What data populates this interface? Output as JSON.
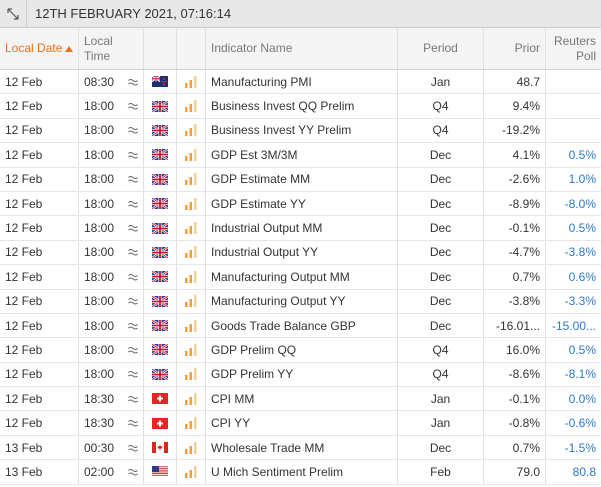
{
  "header": {
    "title": "12TH FEBRUARY 2021, 07:16:14"
  },
  "table": {
    "columns": [
      "Local Date",
      "Local Time",
      "Indicator Name",
      "Period",
      "Prior",
      "Reuters Poll"
    ],
    "rows": [
      {
        "date": "12 Feb",
        "time": "08:30",
        "indicator": "Manufacturing PMI",
        "period": "Jan",
        "prior": "48.7"
      },
      {
        "date": "12 Feb",
        "time": "18:00",
        "indicator": "Business Invest QQ Prelim",
        "period": "Q4",
        "prior": "9.4%"
      },
      {
        "date": "12 Feb",
        "time": "18:00",
        "indicator": "Business Invest YY Prelim",
        "period": "Q4",
        "prior": "-19.2%"
      },
      {
        "date": "12 Feb",
        "time": "18:00",
        "indicator": "GDP Est 3M/3M",
        "period": "Dec",
        "prior": "4.1%",
        "poll": "0.5%"
      },
      {
        "date": "12 Feb",
        "time": "18:00",
        "indicator": "GDP Estimate MM",
        "period": "Dec",
        "prior": "-2.6%",
        "poll": "1.0%"
      },
      {
        "date": "12 Feb",
        "time": "18:00",
        "indicator": "GDP Estimate YY",
        "period": "Dec",
        "prior": "-8.9%",
        "poll": "-8.0%"
      },
      {
        "date": "12 Feb",
        "time": "18:00",
        "indicator": "Industrial Output MM",
        "period": "Dec",
        "prior": "-0.1%",
        "poll": "0.5%"
      },
      {
        "date": "12 Feb",
        "time": "18:00",
        "indicator": "Industrial Output YY",
        "period": "Dec",
        "prior": "-4.7%",
        "poll": "-3.8%"
      },
      {
        "date": "12 Feb",
        "time": "18:00",
        "indicator": "Manufacturing Output MM",
        "period": "Dec",
        "prior": "0.7%",
        "poll": "0.6%"
      },
      {
        "date": "12 Feb",
        "time": "18:00",
        "indicator": "Manufacturing Output YY",
        "period": "Dec",
        "prior": "-3.8%",
        "poll": "-3.3%"
      },
      {
        "date": "12 Feb",
        "time": "18:00",
        "indicator": "Goods Trade Balance GBP",
        "period": "Dec",
        "prior": "-16.01...",
        "poll": "-15.00..."
      },
      {
        "date": "12 Feb",
        "time": "18:00",
        "indicator": "GDP Prelim QQ",
        "period": "Q4",
        "prior": "16.0%",
        "poll": "0.5%"
      },
      {
        "date": "12 Feb",
        "time": "18:00",
        "indicator": "GDP Prelim YY",
        "period": "Q4",
        "prior": "-8.6%",
        "poll": "-8.1%"
      },
      {
        "date": "12 Feb",
        "time": "18:30",
        "indicator": "CPI MM",
        "period": "Jan",
        "prior": "-0.1%",
        "poll": "0.0%"
      },
      {
        "date": "12 Feb",
        "time": "18:30",
        "indicator": "CPI YY",
        "period": "Jan",
        "prior": "-0.8%",
        "poll": "-0.6%"
      },
      {
        "date": "13 Feb",
        "time": "00:30",
        "indicator": "Wholesale Trade MM",
        "period": "Dec",
        "prior": "0.7%",
        "poll": "-1.5%"
      },
      {
        "date": "13 Feb",
        "time": "02:00",
        "indicator": "U Mich Sentiment Prelim",
        "period": "Feb",
        "prior": "79.0",
        "poll": "80.8"
      }
    ]
  }
}
